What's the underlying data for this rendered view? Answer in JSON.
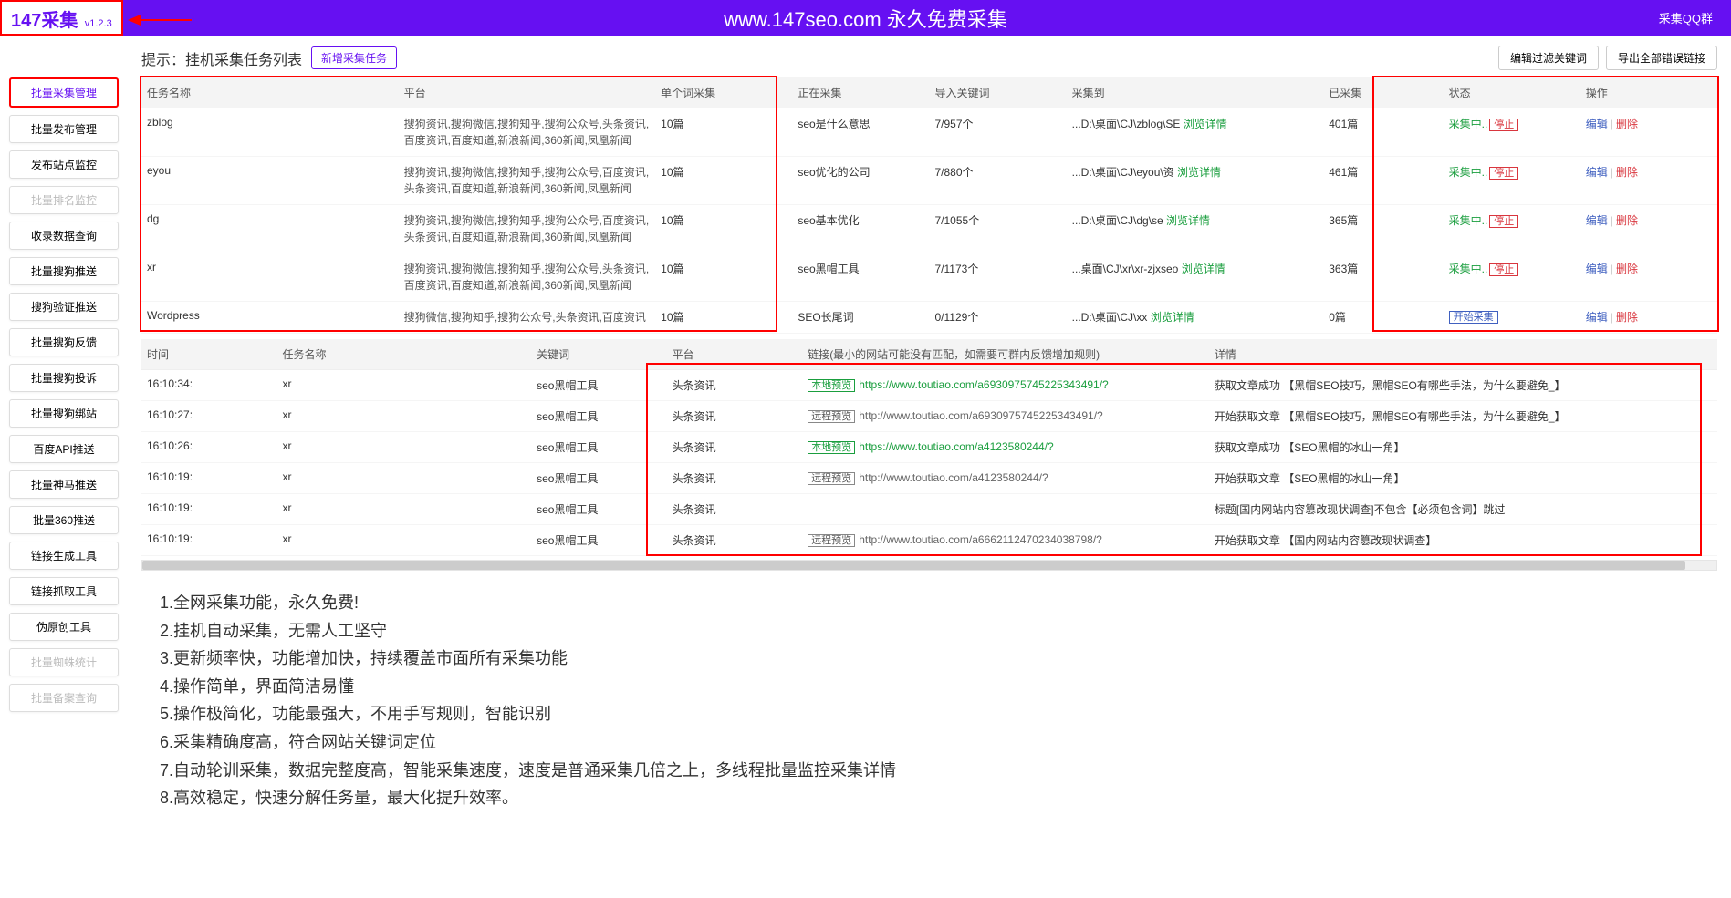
{
  "header": {
    "logo": "147采集",
    "version": "v1.2.3",
    "title": "www.147seo.com   永久免费采集",
    "right": "采集QQ群"
  },
  "sidebar": [
    {
      "label": "批量采集管理",
      "active": true
    },
    {
      "label": "批量发布管理"
    },
    {
      "label": "发布站点监控"
    },
    {
      "label": "批量排名监控",
      "disabled": true
    },
    {
      "label": "收录数据查询"
    },
    {
      "label": "批量搜狗推送"
    },
    {
      "label": "搜狗验证推送"
    },
    {
      "label": "批量搜狗反馈"
    },
    {
      "label": "批量搜狗投诉"
    },
    {
      "label": "批量搜狗绑站"
    },
    {
      "label": "百度API推送"
    },
    {
      "label": "批量神马推送"
    },
    {
      "label": "批量360推送"
    },
    {
      "label": "链接生成工具"
    },
    {
      "label": "链接抓取工具"
    },
    {
      "label": "伪原创工具"
    },
    {
      "label": "批量蜘蛛统计",
      "disabled": true
    },
    {
      "label": "批量备案查询",
      "disabled": true
    }
  ],
  "topbar": {
    "hint": "提示：挂机采集任务列表",
    "newTask": "新增采集任务",
    "filterBtn": "编辑过滤关键词",
    "exportBtn": "导出全部错误链接"
  },
  "taskTable": {
    "headers": [
      "任务名称",
      "平台",
      "单个词采集",
      "正在采集",
      "导入关键词",
      "采集到",
      "已采集",
      "状态",
      "操作"
    ],
    "colWidths": [
      "15%",
      "15%",
      "8%",
      "8%",
      "8%",
      "15%",
      "7%",
      "8%",
      "8%"
    ],
    "rows": [
      {
        "name": "zblog",
        "platform": "搜狗资讯,搜狗微信,搜狗知乎,搜狗公众号,头条资讯,百度资讯,百度知道,新浪新闻,360新闻,凤凰新闻",
        "per": "10篇",
        "collecting": "seo是什么意思",
        "keywords": "7/957个",
        "to": "...D:\\桌面\\CJ\\zblog\\SE",
        "collected": "401篇",
        "status": "running"
      },
      {
        "name": "eyou",
        "platform": "搜狗资讯,搜狗微信,搜狗知乎,搜狗公众号,百度资讯,头条资讯,百度知道,新浪新闻,360新闻,凤凰新闻",
        "per": "10篇",
        "collecting": "seo优化的公司",
        "keywords": "7/880个",
        "to": "...D:\\桌面\\CJ\\eyou\\资",
        "collected": "461篇",
        "status": "running"
      },
      {
        "name": "dg",
        "platform": "搜狗资讯,搜狗微信,搜狗知乎,搜狗公众号,百度资讯,头条资讯,百度知道,新浪新闻,360新闻,凤凰新闻",
        "per": "10篇",
        "collecting": "seo基本优化",
        "keywords": "7/1055个",
        "to": "...D:\\桌面\\CJ\\dg\\se",
        "collected": "365篇",
        "status": "running"
      },
      {
        "name": "xr",
        "platform": "搜狗资讯,搜狗微信,搜狗知乎,搜狗公众号,头条资讯,百度资讯,百度知道,新浪新闻,360新闻,凤凰新闻",
        "per": "10篇",
        "collecting": "seo黑帽工具",
        "keywords": "7/1173个",
        "to": "...桌面\\CJ\\xr\\xr-zjxseo",
        "collected": "363篇",
        "status": "running"
      },
      {
        "name": "Wordpress",
        "platform": "搜狗微信,搜狗知乎,搜狗公众号,头条资讯,百度资讯",
        "per": "10篇",
        "collecting": "SEO长尾词",
        "keywords": "0/1129个",
        "to": "...D:\\桌面\\CJ\\xx",
        "collected": "0篇",
        "status": "idle"
      }
    ],
    "browseDetail": "浏览详情",
    "statusRunning": "采集中..",
    "stopLabel": "停止",
    "startLabel": "开始采集",
    "editLabel": "编辑",
    "deleteLabel": "删除"
  },
  "logTable": {
    "headers": [
      "时间",
      "任务名称",
      "关键词",
      "平台",
      "链接(最小的网站可能没有匹配，如需要可群内反馈增加规则)",
      "详情"
    ],
    "colWidths": [
      "8%",
      "15%",
      "8%",
      "8%",
      "24%",
      "30%"
    ],
    "rows": [
      {
        "time": "16:10:34:",
        "task": "xr",
        "kw": "seo黑帽工具",
        "plat": "头条资讯",
        "badge": "local",
        "url": "https://www.toutiao.com/a6930975745225343491/?",
        "detail": "获取文章成功 【黑帽SEO技巧，黑帽SEO有哪些手法，为什么要避免_】"
      },
      {
        "time": "16:10:27:",
        "task": "xr",
        "kw": "seo黑帽工具",
        "plat": "头条资讯",
        "badge": "remote",
        "url": "http://www.toutiao.com/a6930975745225343491/?",
        "detail": "开始获取文章 【黑帽SEO技巧，黑帽SEO有哪些手法，为什么要避免_】"
      },
      {
        "time": "16:10:26:",
        "task": "xr",
        "kw": "seo黑帽工具",
        "plat": "头条资讯",
        "badge": "local",
        "url": "https://www.toutiao.com/a4123580244/?",
        "detail": "获取文章成功 【SEO黑帽的冰山一角】"
      },
      {
        "time": "16:10:19:",
        "task": "xr",
        "kw": "seo黑帽工具",
        "plat": "头条资讯",
        "badge": "remote",
        "url": "http://www.toutiao.com/a4123580244/?",
        "detail": "开始获取文章 【SEO黑帽的冰山一角】"
      },
      {
        "time": "16:10:19:",
        "task": "xr",
        "kw": "seo黑帽工具",
        "plat": "头条资讯",
        "badge": "",
        "url": "",
        "detail": "标题[国内网站内容篡改现状调查]不包含【必须包含词】跳过"
      },
      {
        "time": "16:10:19:",
        "task": "xr",
        "kw": "seo黑帽工具",
        "plat": "头条资讯",
        "badge": "remote",
        "url": "http://www.toutiao.com/a6662112470234038798/?",
        "detail": "开始获取文章 【国内网站内容篡改现状调查】"
      }
    ],
    "localBadge": "本地预览",
    "remoteBadge": "远程预览"
  },
  "features": [
    "1.全网采集功能，永久免费!",
    "2.挂机自动采集，无需人工坚守",
    "3.更新频率快，功能增加快，持续覆盖市面所有采集功能",
    "4.操作简单，界面简洁易懂",
    "5.操作极简化，功能最强大，不用手写规则，智能识别",
    "6.采集精确度高，符合网站关键词定位",
    "7.自动轮训采集，数据完整度高，智能采集速度，速度是普通采集几倍之上，多线程批量监控采集详情",
    "8.高效稳定，快速分解任务量，最大化提升效率。"
  ]
}
